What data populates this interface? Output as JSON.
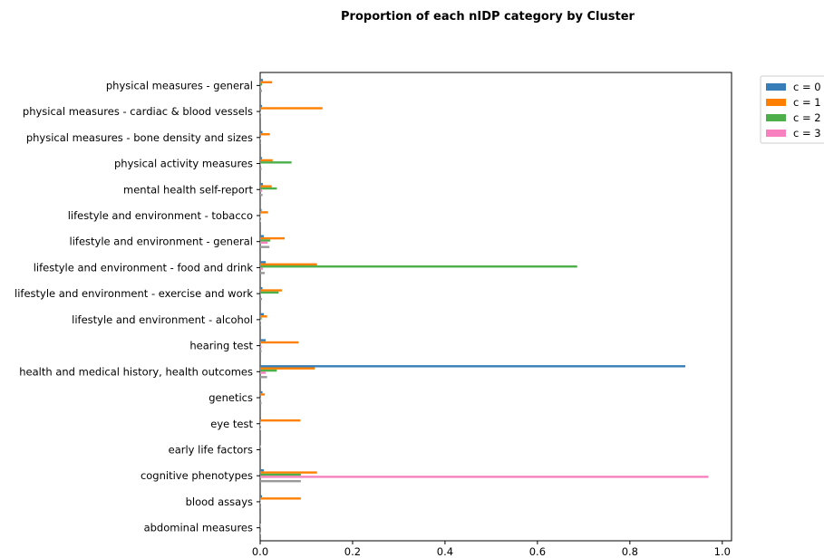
{
  "chart_data": {
    "type": "bar",
    "orientation": "horizontal",
    "title": "Proportion of each nIDP category by Cluster",
    "xlabel": "",
    "ylabel": "",
    "xlim": [
      0,
      1.02
    ],
    "xticks": [
      "0.0",
      "0.2",
      "0.4",
      "0.6",
      "0.8",
      "1.0"
    ],
    "grid": false,
    "legend_position": "outside-top-right",
    "categories": [
      "abdominal measures",
      "blood assays",
      "cognitive phenotypes",
      "early life factors",
      "eye test",
      "genetics",
      "health and medical history, health outcomes",
      "hearing test",
      "lifestyle and environment - alcohol",
      "lifestyle and environment - exercise and work",
      "lifestyle and environment - food and drink",
      "lifestyle and environment - general",
      "lifestyle and environment - tobacco",
      "mental health self-report",
      "physical activity measures",
      "physical measures - bone density and sizes",
      "physical measures - cardiac & blood vessels",
      "physical measures - general"
    ],
    "series": [
      {
        "name": "c = 0",
        "color": "#377eb8",
        "values": [
          0.002,
          0.004,
          0.008,
          0.0,
          0.002,
          0.005,
          0.92,
          0.012,
          0.008,
          0.005,
          0.012,
          0.008,
          0.003,
          0.006,
          0.004,
          0.005,
          0.004,
          0.006
        ]
      },
      {
        "name": "c = 1",
        "color": "#ff7f00",
        "values": [
          0.001,
          0.088,
          0.123,
          0.001,
          0.087,
          0.01,
          0.118,
          0.083,
          0.015,
          0.047,
          0.123,
          0.053,
          0.017,
          0.025,
          0.027,
          0.021,
          0.135,
          0.026
        ]
      },
      {
        "name": "c = 2",
        "color": "#4daf4a",
        "values": [
          0.001,
          0.001,
          0.088,
          0.0,
          0.001,
          0.002,
          0.036,
          0.002,
          0.003,
          0.04,
          0.686,
          0.022,
          0.001,
          0.036,
          0.068,
          0.002,
          0.002,
          0.004
        ]
      },
      {
        "name": "c = 3",
        "color": "#f781bf",
        "values": [
          0.0,
          0.001,
          0.97,
          0.0,
          0.001,
          0.002,
          0.012,
          0.003,
          0.001,
          0.002,
          0.006,
          0.016,
          0.001,
          0.004,
          0.002,
          0.001,
          0.001,
          0.002
        ]
      },
      {
        "name": "",
        "color": "#a65628",
        "values": [
          0.0,
          0.0,
          0.0,
          0.0,
          0.0,
          0.0,
          0.0,
          0.0,
          0.0,
          0.0,
          0.0,
          0.0,
          0.0,
          0.0,
          0.0,
          0.0,
          0.0,
          0.0
        ]
      },
      {
        "name": "",
        "color": "#999999",
        "values": [
          0.001,
          0.002,
          0.088,
          0.0,
          0.001,
          0.003,
          0.015,
          0.003,
          0.002,
          0.004,
          0.01,
          0.02,
          0.001,
          0.005,
          0.003,
          0.002,
          0.002,
          0.004
        ]
      }
    ],
    "legend_entries": [
      "c = 0",
      "c = 1",
      "c = 2",
      "c = 3"
    ]
  }
}
